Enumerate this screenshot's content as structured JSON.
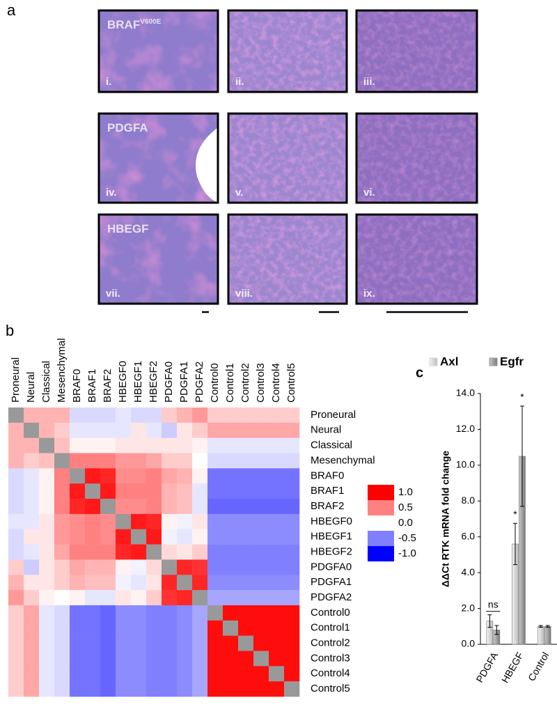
{
  "panel_labels": [
    "a",
    "b",
    "c"
  ],
  "histology": {
    "rows": [
      {
        "title": "BRAF",
        "superscript": "V600E",
        "panels": [
          "i.",
          "ii.",
          "iii."
        ]
      },
      {
        "title": "PDGFA",
        "panels": [
          "iv.",
          "v.",
          "vi."
        ]
      },
      {
        "title": "HBEGF",
        "panels": [
          "vii.",
          "viii.",
          "ix."
        ]
      }
    ]
  },
  "chart_data": [
    {
      "type": "heatmap",
      "labels": [
        "Proneural",
        "Neural",
        "Classical",
        "Mesenchymal",
        "BRAF0",
        "BRAF1",
        "BRAF2",
        "HBEGF0",
        "HBEGF1",
        "HBEGF2",
        "PDGFA0",
        "PDGFA1",
        "PDGFA2",
        "Control0",
        "Control1",
        "Control2",
        "Control3",
        "Control4",
        "Control5"
      ],
      "matrix": [
        [
          null,
          0.3,
          0.3,
          0.3,
          -0.15,
          -0.15,
          -0.15,
          -0.1,
          -0.15,
          -0.15,
          0.2,
          0.3,
          0.4,
          0.2,
          0.2,
          0.2,
          0.2,
          0.2,
          0.2
        ],
        [
          0.3,
          null,
          0.3,
          0.2,
          -0.1,
          -0.1,
          -0.1,
          -0.1,
          0.1,
          -0.1,
          -0.2,
          0.1,
          0.2,
          0.35,
          0.35,
          0.35,
          0.35,
          0.35,
          0.35
        ],
        [
          0.3,
          0.3,
          null,
          0.25,
          0.05,
          0.05,
          0.05,
          0.1,
          0.1,
          0.1,
          0.1,
          0.1,
          0.05,
          -0.1,
          -0.1,
          -0.1,
          -0.1,
          -0.1,
          -0.1
        ],
        [
          0.3,
          0.2,
          0.25,
          null,
          0.5,
          0.5,
          0.5,
          0.4,
          0.4,
          0.35,
          0.2,
          0.2,
          0.0,
          -0.15,
          -0.15,
          -0.15,
          -0.15,
          -0.15,
          -0.15
        ],
        [
          -0.15,
          -0.1,
          0.05,
          0.5,
          null,
          0.9,
          0.85,
          0.45,
          0.45,
          0.5,
          0.35,
          0.3,
          0.05,
          -0.55,
          -0.55,
          -0.55,
          -0.55,
          -0.55,
          -0.55
        ],
        [
          -0.15,
          -0.1,
          0.05,
          0.5,
          0.9,
          null,
          0.9,
          0.5,
          0.5,
          0.5,
          0.3,
          0.25,
          -0.1,
          -0.55,
          -0.55,
          -0.55,
          -0.55,
          -0.55,
          -0.55
        ],
        [
          -0.15,
          -0.1,
          0.05,
          0.5,
          0.85,
          0.9,
          null,
          0.45,
          0.45,
          0.5,
          0.3,
          0.25,
          -0.1,
          -0.6,
          -0.6,
          -0.6,
          -0.6,
          -0.6,
          -0.6
        ],
        [
          -0.1,
          -0.1,
          0.1,
          0.4,
          0.45,
          0.5,
          0.45,
          null,
          0.9,
          0.85,
          0.05,
          -0.05,
          0.1,
          -0.45,
          -0.45,
          -0.45,
          -0.45,
          -0.45,
          -0.45
        ],
        [
          -0.15,
          0.1,
          0.1,
          0.4,
          0.45,
          0.5,
          0.45,
          0.9,
          null,
          0.9,
          -0.05,
          -0.1,
          0.05,
          -0.45,
          -0.45,
          -0.45,
          -0.45,
          -0.45,
          -0.45
        ],
        [
          -0.15,
          -0.1,
          0.1,
          0.35,
          0.5,
          0.5,
          0.5,
          0.85,
          0.9,
          null,
          0.15,
          0.1,
          0.2,
          -0.5,
          -0.5,
          -0.5,
          -0.5,
          -0.5,
          -0.5
        ],
        [
          0.2,
          -0.2,
          0.1,
          0.2,
          0.35,
          0.3,
          0.3,
          0.05,
          -0.05,
          0.15,
          null,
          0.85,
          0.8,
          -0.5,
          -0.5,
          -0.5,
          -0.5,
          -0.5,
          -0.5
        ],
        [
          0.3,
          0.1,
          0.1,
          0.2,
          0.3,
          0.25,
          0.25,
          -0.05,
          -0.1,
          0.1,
          0.85,
          null,
          0.85,
          -0.45,
          -0.45,
          -0.45,
          -0.45,
          -0.45,
          -0.45
        ],
        [
          0.4,
          0.2,
          0.05,
          0.0,
          0.05,
          -0.1,
          -0.1,
          0.1,
          0.05,
          0.2,
          0.8,
          0.85,
          null,
          -0.35,
          -0.35,
          -0.35,
          -0.35,
          -0.35,
          -0.35
        ],
        [
          0.2,
          0.35,
          -0.1,
          -0.15,
          -0.55,
          -0.55,
          -0.6,
          -0.45,
          -0.45,
          -0.5,
          -0.5,
          -0.45,
          -0.35,
          null,
          0.95,
          0.95,
          0.95,
          0.95,
          0.95
        ],
        [
          0.2,
          0.35,
          -0.1,
          -0.15,
          -0.55,
          -0.55,
          -0.6,
          -0.45,
          -0.45,
          -0.5,
          -0.5,
          -0.45,
          -0.35,
          0.95,
          null,
          0.95,
          0.95,
          0.95,
          0.95
        ],
        [
          0.2,
          0.35,
          -0.1,
          -0.15,
          -0.55,
          -0.55,
          -0.6,
          -0.45,
          -0.45,
          -0.5,
          -0.5,
          -0.45,
          -0.35,
          0.95,
          0.95,
          null,
          0.95,
          0.95,
          0.95
        ],
        [
          0.2,
          0.35,
          -0.1,
          -0.15,
          -0.55,
          -0.55,
          -0.6,
          -0.45,
          -0.45,
          -0.5,
          -0.5,
          -0.45,
          -0.35,
          0.95,
          0.95,
          0.95,
          null,
          0.95,
          0.95
        ],
        [
          0.2,
          0.35,
          -0.1,
          -0.15,
          -0.55,
          -0.55,
          -0.6,
          -0.45,
          -0.45,
          -0.5,
          -0.5,
          -0.45,
          -0.35,
          0.95,
          0.95,
          0.95,
          0.95,
          null,
          0.95
        ],
        [
          0.2,
          0.35,
          -0.1,
          -0.15,
          -0.55,
          -0.55,
          -0.6,
          -0.45,
          -0.45,
          -0.5,
          -0.5,
          -0.45,
          -0.35,
          0.95,
          0.95,
          0.95,
          0.95,
          0.95,
          null
        ]
      ],
      "diagonal_color": "#999999",
      "colorbar_ticks": [
        {
          "value": 1,
          "label": "1.0"
        },
        0.5,
        {
          "value": 0,
          "label": "0.0"
        },
        -0.5,
        {
          "value": -1,
          "label": "-1.0"
        }
      ]
    },
    {
      "type": "bar",
      "ylabel": "ΔΔCt RTK mRNA fold change",
      "categories": [
        "PDGFA",
        "HBEGF",
        "Control"
      ],
      "series": [
        {
          "name": "Axl",
          "color": "#d4d4d4",
          "values": [
            1.3,
            5.6,
            1.0
          ],
          "errors": [
            0.35,
            1.15,
            0.05
          ]
        },
        {
          "name": "Egfr",
          "color": "#9a9a9a",
          "values": [
            0.8,
            10.5,
            1.0
          ],
          "errors": [
            0.25,
            2.8,
            0.05
          ]
        }
      ],
      "annotations": [
        "ns",
        "*",
        "*"
      ],
      "ylim": [
        0,
        14
      ],
      "yticks": [
        {
          "value": 0,
          "label": "0.0"
        },
        {
          "value": 2,
          "label": "2.0"
        },
        {
          "value": 4,
          "label": "4.0"
        },
        {
          "value": 6,
          "label": "6.0"
        },
        {
          "value": 8,
          "label": "8.0"
        },
        {
          "value": 10,
          "label": "10.0"
        },
        {
          "value": 12,
          "label": "12.0"
        },
        {
          "value": 14,
          "label": "14.0"
        }
      ]
    }
  ]
}
